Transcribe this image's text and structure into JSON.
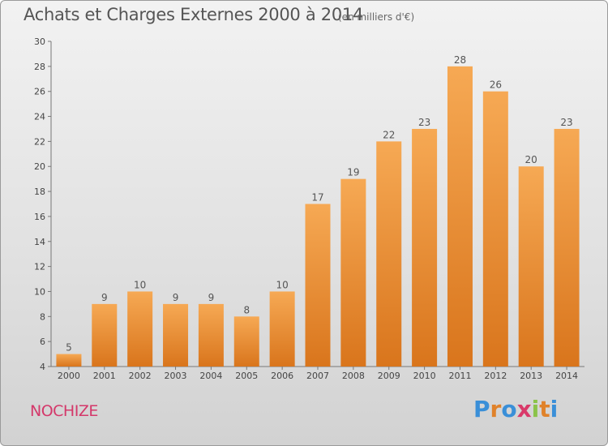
{
  "header": {
    "title": "Achats et Charges Externes 2000 à 2014",
    "unit": "(en milliers d'€)"
  },
  "footer": {
    "commune": "NOCHIZE",
    "logo": "Proxiti"
  },
  "colors": {
    "bar_light": "#f6a954",
    "bar_dark": "#d9751c",
    "text": "#555555",
    "commune": "#d4386a"
  },
  "chart_data": {
    "type": "bar",
    "categories": [
      "2000",
      "2001",
      "2002",
      "2003",
      "2004",
      "2005",
      "2006",
      "2007",
      "2008",
      "2009",
      "2010",
      "2011",
      "2012",
      "2013",
      "2014"
    ],
    "values": [
      5,
      9,
      10,
      9,
      9,
      8,
      10,
      17,
      19,
      22,
      23,
      28,
      26,
      20,
      23
    ],
    "title": "Achats et Charges Externes 2000 à 2014",
    "xlabel": "",
    "ylabel": "",
    "ylim": [
      4,
      30
    ],
    "yticks": [
      4,
      6,
      8,
      10,
      12,
      14,
      16,
      18,
      20,
      22,
      24,
      26,
      28,
      30
    ],
    "grid": false,
    "data_labels": true
  }
}
